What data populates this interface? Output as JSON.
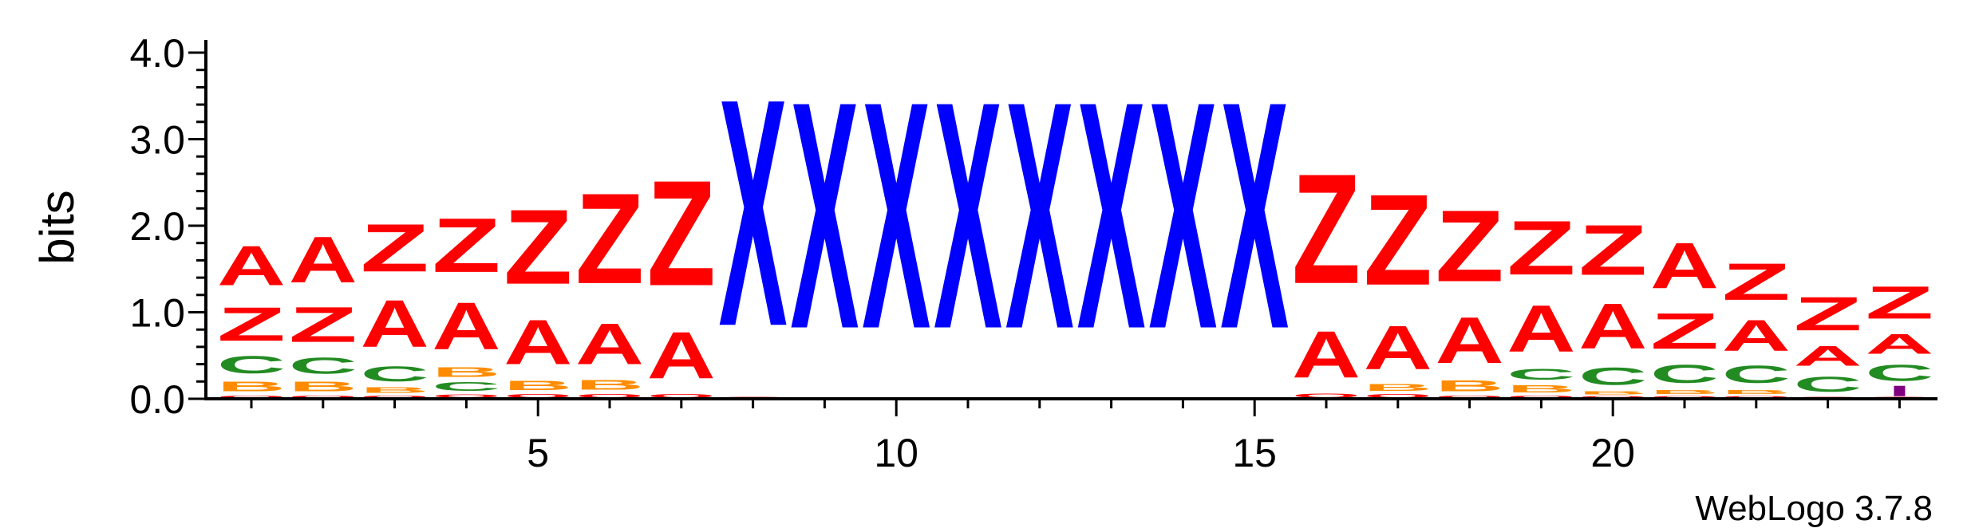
{
  "chart_data": {
    "type": "sequence-logo",
    "ylabel": "bits",
    "ylim": [
      0,
      4.0
    ],
    "y_ticks": [
      {
        "value": 0.0,
        "label": "0.0"
      },
      {
        "value": 1.0,
        "label": "1.0"
      },
      {
        "value": 2.0,
        "label": "2.0"
      },
      {
        "value": 3.0,
        "label": "3.0"
      },
      {
        "value": 4.0,
        "label": "4.0"
      }
    ],
    "xlim": [
      1,
      24
    ],
    "x_ticks": [
      {
        "value": 5,
        "label": "5"
      },
      {
        "value": 10,
        "label": "10"
      },
      {
        "value": 15,
        "label": "15"
      },
      {
        "value": 20,
        "label": "20"
      }
    ],
    "colors": {
      "A": "#ff0000",
      "Z": "#ff0000",
      "Q": "#ff0000",
      "C": "#228b22",
      "B": "#ff8c00",
      "X": "#0000ff",
      "M": "#800080"
    },
    "positions": [
      {
        "pos": 1,
        "stack": [
          {
            "letter": "Q",
            "bits": 0.05
          },
          {
            "letter": "B",
            "bits": 0.18
          },
          {
            "letter": "C",
            "bits": 0.32
          },
          {
            "letter": "Z",
            "bits": 0.62
          },
          {
            "letter": "A",
            "bits": 0.73
          }
        ]
      },
      {
        "pos": 2,
        "stack": [
          {
            "letter": "Q",
            "bits": 0.05
          },
          {
            "letter": "B",
            "bits": 0.18
          },
          {
            "letter": "C",
            "bits": 0.3
          },
          {
            "letter": "Z",
            "bits": 0.65
          },
          {
            "letter": "A",
            "bits": 0.85
          }
        ]
      },
      {
        "pos": 3,
        "stack": [
          {
            "letter": "Q",
            "bits": 0.05
          },
          {
            "letter": "B",
            "bits": 0.1
          },
          {
            "letter": "C",
            "bits": 0.28
          },
          {
            "letter": "A",
            "bits": 0.87
          },
          {
            "letter": "Z",
            "bits": 0.88
          }
        ]
      },
      {
        "pos": 4,
        "stack": [
          {
            "letter": "Q",
            "bits": 0.06
          },
          {
            "letter": "C",
            "bits": 0.16
          },
          {
            "letter": "B",
            "bits": 0.18
          },
          {
            "letter": "A",
            "bits": 0.87
          },
          {
            "letter": "Z",
            "bits": 1.0
          }
        ]
      },
      {
        "pos": 5,
        "stack": [
          {
            "letter": "Q",
            "bits": 0.07
          },
          {
            "letter": "B",
            "bits": 0.17
          },
          {
            "letter": "A",
            "bits": 0.82
          },
          {
            "letter": "Z",
            "bits": 1.38
          }
        ]
      },
      {
        "pos": 6,
        "stack": [
          {
            "letter": "Q",
            "bits": 0.07
          },
          {
            "letter": "B",
            "bits": 0.18
          },
          {
            "letter": "A",
            "bits": 0.76
          },
          {
            "letter": "Z",
            "bits": 1.67
          }
        ]
      },
      {
        "pos": 7,
        "stack": [
          {
            "letter": "Q",
            "bits": 0.07
          },
          {
            "letter": "A",
            "bits": 0.86
          },
          {
            "letter": "Z",
            "bits": 1.95
          }
        ]
      },
      {
        "pos": 8,
        "stack": [
          {
            "letter": "Q",
            "bits": 0.03
          },
          {
            "letter": "X",
            "bits": 4.2
          }
        ]
      },
      {
        "pos": 9,
        "stack": [
          {
            "letter": "X",
            "bits": 4.2
          }
        ]
      },
      {
        "pos": 10,
        "stack": [
          {
            "letter": "X",
            "bits": 4.2
          }
        ]
      },
      {
        "pos": 11,
        "stack": [
          {
            "letter": "X",
            "bits": 4.2
          }
        ]
      },
      {
        "pos": 12,
        "stack": [
          {
            "letter": "X",
            "bits": 4.2
          }
        ]
      },
      {
        "pos": 13,
        "stack": [
          {
            "letter": "X",
            "bits": 4.2
          }
        ]
      },
      {
        "pos": 14,
        "stack": [
          {
            "letter": "X",
            "bits": 4.2
          }
        ]
      },
      {
        "pos": 15,
        "stack": [
          {
            "letter": "X",
            "bits": 4.2
          }
        ]
      },
      {
        "pos": 16,
        "stack": [
          {
            "letter": "Q",
            "bits": 0.08
          },
          {
            "letter": "A",
            "bits": 0.86
          },
          {
            "letter": "Z",
            "bits": 2.03
          }
        ]
      },
      {
        "pos": 17,
        "stack": [
          {
            "letter": "Q",
            "bits": 0.07
          },
          {
            "letter": "B",
            "bits": 0.12
          },
          {
            "letter": "A",
            "bits": 0.8
          },
          {
            "letter": "Z",
            "bits": 1.68
          }
        ]
      },
      {
        "pos": 18,
        "stack": [
          {
            "letter": "Q",
            "bits": 0.05
          },
          {
            "letter": "B",
            "bits": 0.2
          },
          {
            "letter": "A",
            "bits": 0.85
          },
          {
            "letter": "Z",
            "bits": 1.32
          }
        ]
      },
      {
        "pos": 19,
        "stack": [
          {
            "letter": "Q",
            "bits": 0.05
          },
          {
            "letter": "B",
            "bits": 0.13
          },
          {
            "letter": "C",
            "bits": 0.2
          },
          {
            "letter": "A",
            "bits": 0.86
          },
          {
            "letter": "Z",
            "bits": 1.0
          }
        ]
      },
      {
        "pos": 20,
        "stack": [
          {
            "letter": "Q",
            "bits": 0.04
          },
          {
            "letter": "B",
            "bits": 0.06
          },
          {
            "letter": "C",
            "bits": 0.32
          },
          {
            "letter": "A",
            "bits": 0.83
          },
          {
            "letter": "Z",
            "bits": 0.93
          }
        ]
      },
      {
        "pos": 21,
        "stack": [
          {
            "letter": "Q",
            "bits": 0.04
          },
          {
            "letter": "B",
            "bits": 0.08
          },
          {
            "letter": "C",
            "bits": 0.33
          },
          {
            "letter": "Z",
            "bits": 0.66
          },
          {
            "letter": "A",
            "bits": 0.84
          }
        ]
      },
      {
        "pos": 22,
        "stack": [
          {
            "letter": "Q",
            "bits": 0.04
          },
          {
            "letter": "B",
            "bits": 0.08
          },
          {
            "letter": "C",
            "bits": 0.32
          },
          {
            "letter": "A",
            "bits": 0.57
          },
          {
            "letter": "Z",
            "bits": 0.68
          }
        ]
      },
      {
        "pos": 23,
        "stack": [
          {
            "letter": "Q",
            "bits": 0.03
          },
          {
            "letter": "C",
            "bits": 0.28
          },
          {
            "letter": "A",
            "bits": 0.36
          },
          {
            "letter": "Z",
            "bits": 0.62
          }
        ]
      },
      {
        "pos": 24,
        "stack": [
          {
            "letter": "Q",
            "bits": 0.03
          },
          {
            "letter": "M",
            "bits": 0.12
          },
          {
            "letter": "C",
            "bits": 0.3
          },
          {
            "letter": "A",
            "bits": 0.36
          },
          {
            "letter": "Z",
            "bits": 0.6
          }
        ]
      }
    ]
  },
  "credit": "WebLogo 3.7.8"
}
